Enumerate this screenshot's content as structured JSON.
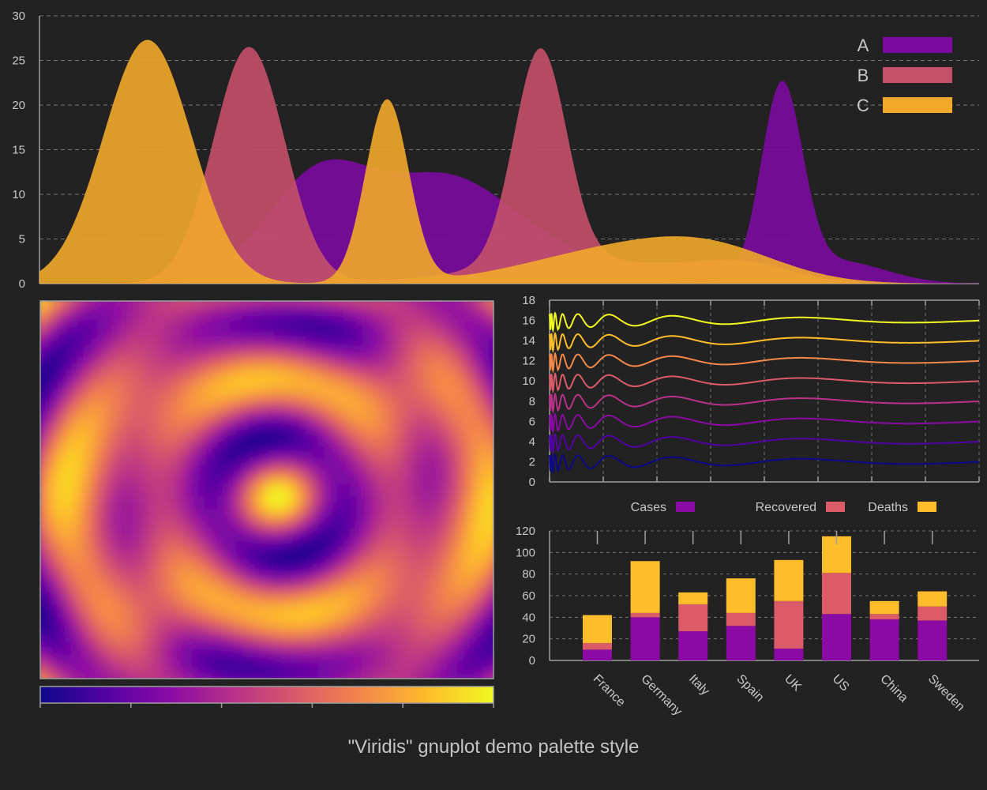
{
  "page": {
    "title": "\"Viridis\" gnuplot demo palette style"
  },
  "colors": {
    "background": "#222222",
    "axis": "#a0a0a0",
    "grid": "#8a8a8a",
    "text": "#c8c8c8",
    "A": "#7a0aa0",
    "B": "#c4506a",
    "C": "#f2a82a",
    "cases": "#8b0aa5",
    "recovered": "#db5c68",
    "deaths": "#febd2a",
    "palette": [
      "#0d0887",
      "#5302a3",
      "#8b0aa5",
      "#b83289",
      "#db5c68",
      "#f48849",
      "#febd2a",
      "#f0f921"
    ]
  },
  "chart_data": [
    {
      "id": "top-area",
      "type": "area",
      "xlim": [
        0,
        1
      ],
      "ylim": [
        0,
        30
      ],
      "yticks": [
        0,
        5,
        10,
        15,
        20,
        25,
        30
      ],
      "grid": true,
      "legend_position": "top-right",
      "series": [
        {
          "name": "A",
          "color": "#7a0aa0",
          "components": [
            {
              "amp": 12.5,
              "center": 0.3,
              "width": 0.058
            },
            {
              "amp": 8.0,
              "center": 0.425,
              "width": 0.06
            },
            {
              "amp": 5.0,
              "center": 0.5,
              "width": 0.08
            },
            {
              "amp": 21.5,
              "center": 0.79,
              "width": 0.022
            },
            {
              "amp": 2.5,
              "center": 0.85,
              "width": 0.05
            }
          ]
        },
        {
          "name": "B",
          "color": "#c4506a",
          "components": [
            {
              "amp": 26.5,
              "center": 0.223,
              "width": 0.038
            },
            {
              "amp": 24.0,
              "center": 0.533,
              "width": 0.028
            },
            {
              "amp": 2.6,
              "center": 0.58,
              "width": 0.11
            },
            {
              "amp": 1.8,
              "center": 0.75,
              "width": 0.05
            }
          ]
        },
        {
          "name": "C",
          "color": "#f2a82a",
          "components": [
            {
              "amp": 27.3,
              "center": 0.115,
              "width": 0.047
            },
            {
              "amp": 20.5,
              "center": 0.37,
              "width": 0.023
            },
            {
              "amp": 3.8,
              "center": 0.62,
              "width": 0.1
            },
            {
              "amp": 2.5,
              "center": 0.72,
              "width": 0.07
            }
          ]
        }
      ]
    },
    {
      "id": "heatmap",
      "type": "heatmap",
      "function": "cos(r * k) radial rings",
      "colorbar": {
        "min": 0,
        "max": 1,
        "ticks": [
          0,
          0.2,
          0.4,
          0.6,
          0.8,
          1
        ]
      }
    },
    {
      "id": "wave-lines",
      "type": "line",
      "ylim": [
        0,
        18
      ],
      "yticks": [
        0,
        2,
        4,
        6,
        8,
        10,
        12,
        14,
        16,
        18
      ],
      "xticks_count": 9,
      "grid": true,
      "series_offsets": [
        2,
        4,
        6,
        8,
        10,
        12,
        14,
        16
      ]
    },
    {
      "id": "stacked-bars",
      "type": "bar",
      "stacked": true,
      "categories": [
        "France",
        "Germany",
        "Italy",
        "Spain",
        "UK",
        "US",
        "China",
        "Sweden"
      ],
      "series": [
        {
          "name": "Cases",
          "color": "#8b0aa5",
          "values": [
            10,
            40,
            27,
            32,
            11,
            43,
            38,
            37
          ]
        },
        {
          "name": "Recovered",
          "color": "#db5c68",
          "values": [
            6,
            4,
            25,
            12,
            44,
            38,
            5,
            13
          ]
        },
        {
          "name": "Deaths",
          "color": "#febd2a",
          "values": [
            26,
            48,
            11,
            32,
            38,
            34,
            12,
            14
          ]
        }
      ],
      "ylim": [
        0,
        120
      ],
      "yticks": [
        0,
        20,
        40,
        60,
        80,
        100,
        120
      ],
      "grid": true,
      "legend_position": "top"
    }
  ]
}
